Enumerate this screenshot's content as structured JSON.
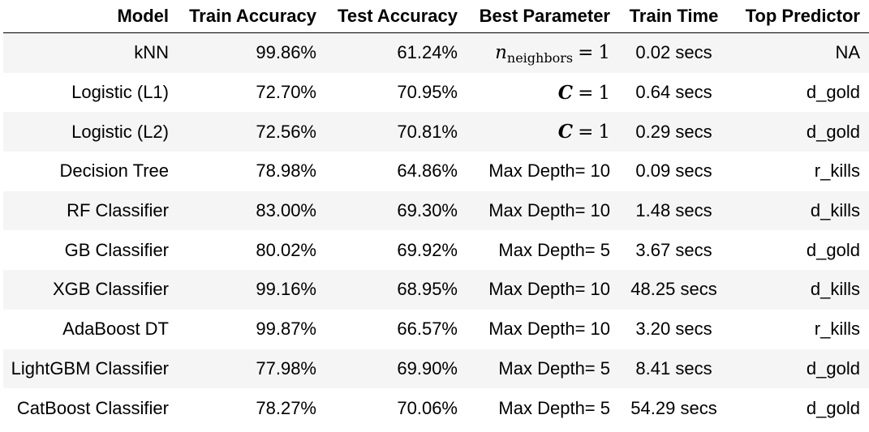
{
  "table": {
    "headers": {
      "model": "Model",
      "train_accuracy": "Train Accuracy",
      "test_accuracy": "Test Accuracy",
      "best_parameter": "Best Parameter",
      "train_time": "Train Time",
      "top_predictor": "Top Predictor"
    },
    "rows": [
      {
        "model": "kNN",
        "train_accuracy": "99.86%",
        "test_accuracy": "61.24%",
        "param_var": "n",
        "param_sub": "neighbors",
        "param_eq": "=",
        "param_val": "1",
        "train_time": "0.02 secs",
        "top_predictor": "NA"
      },
      {
        "model": "Logistic (L1)",
        "train_accuracy": "72.70%",
        "test_accuracy": "70.95%",
        "param_var": "C",
        "param_eq": "=",
        "param_val": "1",
        "train_time": "0.64 secs",
        "top_predictor": "d_gold"
      },
      {
        "model": "Logistic (L2)",
        "train_accuracy": "72.56%",
        "test_accuracy": "70.81%",
        "param_var": "C",
        "param_eq": "=",
        "param_val": "1",
        "train_time": "0.29 secs",
        "top_predictor": "d_gold"
      },
      {
        "model": "Decision Tree",
        "train_accuracy": "78.98%",
        "test_accuracy": "64.86%",
        "best_parameter": "Max Depth= 10",
        "train_time": "0.09 secs",
        "top_predictor": "r_kills"
      },
      {
        "model": "RF Classifier",
        "train_accuracy": "83.00%",
        "test_accuracy": "69.30%",
        "best_parameter": "Max Depth= 10",
        "train_time": "1.48 secs",
        "top_predictor": "d_kills"
      },
      {
        "model": "GB Classifier",
        "train_accuracy": "80.02%",
        "test_accuracy": "69.92%",
        "best_parameter": "Max Depth= 5",
        "train_time": "3.67 secs",
        "top_predictor": "d_gold"
      },
      {
        "model": "XGB Classifier",
        "train_accuracy": "99.16%",
        "test_accuracy": "68.95%",
        "best_parameter": "Max Depth= 10",
        "train_time": "48.25 secs",
        "top_predictor": "d_kills"
      },
      {
        "model": "AdaBoost DT",
        "train_accuracy": "99.87%",
        "test_accuracy": "66.57%",
        "best_parameter": "Max Depth= 10",
        "train_time": "3.20 secs",
        "top_predictor": "r_kills"
      },
      {
        "model": "LightGBM Classifier",
        "train_accuracy": "77.98%",
        "test_accuracy": "69.90%",
        "best_parameter": "Max Depth= 5",
        "train_time": "8.41 secs",
        "top_predictor": "d_gold"
      },
      {
        "model": "CatBoost Classifier",
        "train_accuracy": "78.27%",
        "test_accuracy": "70.06%",
        "best_parameter": "Max Depth= 5",
        "train_time": "54.29 secs",
        "top_predictor": "d_gold"
      }
    ]
  },
  "colors": {
    "stripe": "#f5f5f5",
    "background": "#ffffff",
    "text": "#000000"
  }
}
